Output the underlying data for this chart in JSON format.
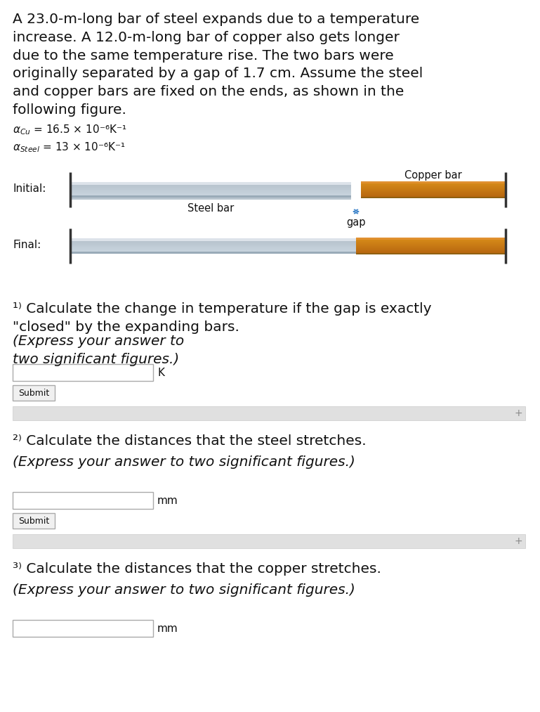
{
  "background_color": "#ffffff",
  "title_text": "A 23.0-m-long bar of steel expands due to a temperature\nincrease. A 12.0-m-long bar of copper also gets longer\ndue to the same temperature rise. The two bars were\noriginally separated by a gap of 1.7 cm. Assume the steel\nand copper bars are fixed on the ends, as shown in the\nfollowing figure.",
  "alpha_cu_label": "αᶜᵤ = 16.5 × 10⁻⁶K⁻¹",
  "alpha_steel_label": "αSteel = 13 × 10⁻⁶K⁻¹",
  "initial_label": "Initial:",
  "final_label": "Final:",
  "steel_label": "Steel bar",
  "copper_label": "Copper bar",
  "gap_label": "gap",
  "steel_color_top": "#c8d0d8",
  "steel_color_mid": "#b0bcc8",
  "steel_color_bot": "#d8dde4",
  "copper_color_top": "#c87820",
  "copper_color_mid": "#d4881c",
  "copper_color_bot": "#b06010",
  "wall_color": "#555555",
  "q1_text": "¹⧠ Calculate the change in temperature if the gap is exactly\n\"closed\" by the expanding bars. (Express your answer to\ntwo significant figures.)",
  "q1_unit": "K",
  "q2_text": "²⧠ Calculate the distances that the steel stretches.\n(Express your answer to two significant figures.)",
  "q2_unit": "mm",
  "q3_text": "³⧠ Calculate the distances that the copper stretches.\n(Express your answer to two significant figures.)",
  "q3_unit": "mm",
  "submit_text": "Submit",
  "fig_width": 7.69,
  "fig_height": 10.13
}
